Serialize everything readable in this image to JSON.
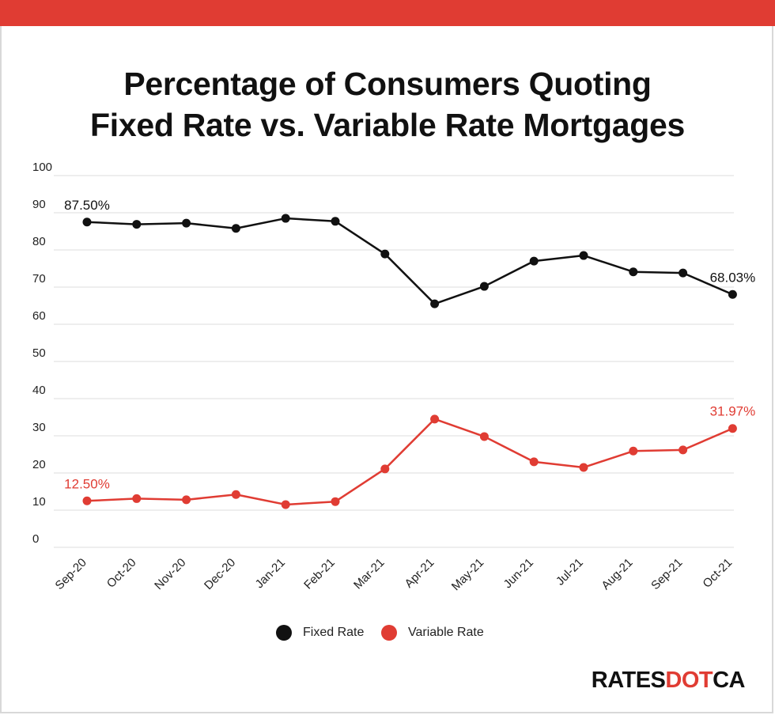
{
  "title": {
    "line1": "Percentage of Consumers Quoting",
    "line2": "Fixed Rate vs. Variable Rate Mortgages"
  },
  "logo": {
    "part1": "RATES",
    "part2": "DOT",
    "part3": "CA"
  },
  "colors": {
    "accent": "#e03c33",
    "fixed": "#111111",
    "variable": "#e03c33",
    "grid": "#dddddd"
  },
  "chart_data": {
    "type": "line",
    "title": "Percentage of Consumers Quoting Fixed Rate vs. Variable Rate Mortgages",
    "categories": [
      "Sep-20",
      "Oct-20",
      "Nov-20",
      "Dec-20",
      "Jan-21",
      "Feb-21",
      "Mar-21",
      "Apr-21",
      "May-21",
      "Jun-21",
      "Jul-21",
      "Aug-21",
      "Sep-21",
      "Oct-21"
    ],
    "series": [
      {
        "name": "Fixed Rate",
        "color": "#111111",
        "values": [
          87.5,
          86.9,
          87.2,
          85.8,
          88.5,
          87.7,
          78.9,
          65.5,
          70.2,
          77.0,
          78.5,
          74.1,
          73.8,
          68.03
        ]
      },
      {
        "name": "Variable Rate",
        "color": "#e03c33",
        "values": [
          12.5,
          13.1,
          12.8,
          14.2,
          11.5,
          12.3,
          21.1,
          34.5,
          29.8,
          23.0,
          21.5,
          25.9,
          26.2,
          31.97
        ]
      }
    ],
    "data_labels": [
      {
        "series": 0,
        "index": 0,
        "text": "87.50%"
      },
      {
        "series": 0,
        "index": 13,
        "text": "68.03%"
      },
      {
        "series": 1,
        "index": 0,
        "text": "12.50%"
      },
      {
        "series": 1,
        "index": 13,
        "text": "31.97%"
      }
    ],
    "yticks": [
      0,
      10,
      20,
      30,
      40,
      50,
      60,
      70,
      80,
      90,
      100
    ],
    "ylim": [
      0,
      100
    ],
    "grid": true,
    "legend": "bottom-center"
  }
}
